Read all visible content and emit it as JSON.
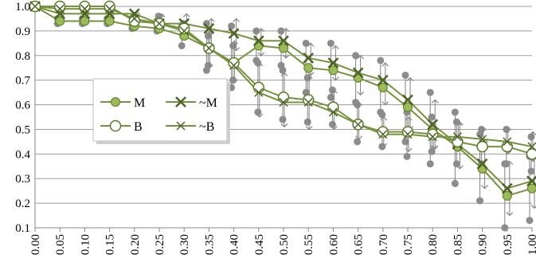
{
  "chart_data": {
    "type": "line",
    "title": "",
    "xlabel": "",
    "ylabel": "",
    "x": [
      0.0,
      0.05,
      0.1,
      0.15,
      0.2,
      0.25,
      0.3,
      0.35,
      0.4,
      0.45,
      0.5,
      0.55,
      0.6,
      0.65,
      0.7,
      0.75,
      0.8,
      0.85,
      0.9,
      0.95,
      1.0
    ],
    "x_tick_labels": [
      "0.00",
      "0.05",
      "0.10",
      "0.15",
      "0.20",
      "0.25",
      "0.30",
      "0.35",
      "0.40",
      "0.45",
      "0.50",
      "0.55",
      "0.60",
      "0.65",
      "0.70",
      "0.75",
      "0.80",
      "0.85",
      "0.90",
      "0.95",
      "1.00"
    ],
    "ylim": [
      0.1,
      1.0
    ],
    "y_ticks": [
      0.1,
      0.2,
      0.3,
      0.4,
      0.5,
      0.6,
      0.7,
      0.8,
      0.9,
      1.0
    ],
    "y_tick_labels": [
      "0.1",
      "0.2",
      "0.3",
      "0.4",
      "0.5",
      "0.6",
      "0.7",
      "0.8",
      "0.9",
      "1.0"
    ],
    "grid": "horizontal",
    "legend_position": "left-middle",
    "series": [
      {
        "name": "M",
        "marker": "filled-circle",
        "values": [
          1.0,
          0.94,
          0.94,
          0.94,
          0.92,
          0.91,
          0.88,
          0.83,
          0.77,
          0.84,
          0.83,
          0.75,
          0.74,
          0.71,
          0.67,
          0.59,
          0.5,
          0.43,
          0.34,
          0.23,
          0.26
        ],
        "low": [
          1.0,
          0.93,
          0.93,
          0.93,
          0.91,
          0.9,
          0.84,
          0.74,
          0.67,
          0.78,
          0.76,
          0.65,
          0.63,
          0.61,
          0.57,
          0.45,
          0.36,
          0.28,
          0.21,
          0.1,
          0.13
        ],
        "high": [
          1.0,
          0.95,
          0.95,
          0.95,
          0.94,
          0.93,
          0.92,
          0.93,
          0.92,
          0.9,
          0.9,
          0.85,
          0.85,
          0.8,
          0.78,
          0.72,
          0.65,
          0.57,
          0.48,
          0.36,
          0.39
        ]
      },
      {
        "name": "~M",
        "marker": "x",
        "values": [
          1.0,
          0.97,
          0.97,
          0.97,
          0.97,
          0.93,
          0.93,
          0.91,
          0.89,
          0.86,
          0.86,
          0.79,
          0.77,
          0.73,
          0.7,
          0.62,
          0.52,
          0.44,
          0.36,
          0.26,
          0.29
        ],
        "low": [
          1.0,
          0.96,
          0.96,
          0.96,
          0.95,
          0.92,
          0.88,
          0.83,
          0.82,
          0.8,
          0.79,
          0.72,
          0.7,
          0.64,
          0.6,
          0.5,
          0.42,
          0.34,
          0.26,
          0.15,
          0.18
        ],
        "high": [
          1.0,
          0.98,
          0.98,
          0.98,
          0.98,
          0.97,
          0.97,
          0.95,
          0.95,
          0.91,
          0.91,
          0.85,
          0.84,
          0.8,
          0.77,
          0.71,
          0.62,
          0.53,
          0.46,
          0.37,
          0.4
        ]
      },
      {
        "name": "B",
        "marker": "open-circle",
        "values": [
          1.0,
          1.0,
          1.0,
          1.0,
          0.94,
          0.93,
          0.91,
          0.83,
          0.77,
          0.67,
          0.63,
          0.62,
          0.59,
          0.52,
          0.49,
          0.49,
          0.48,
          0.45,
          0.43,
          0.43,
          0.4
        ],
        "low": [
          1.0,
          1.0,
          1.0,
          1.0,
          0.93,
          0.91,
          0.88,
          0.76,
          0.7,
          0.57,
          0.54,
          0.53,
          0.52,
          0.45,
          0.43,
          0.39,
          0.41,
          0.36,
          0.36,
          0.36,
          0.33
        ],
        "high": [
          1.0,
          1.0,
          1.0,
          1.0,
          0.95,
          0.96,
          0.93,
          0.88,
          0.84,
          0.77,
          0.74,
          0.71,
          0.66,
          0.6,
          0.56,
          0.57,
          0.55,
          0.53,
          0.5,
          0.5,
          0.47
        ]
      },
      {
        "name": "~B",
        "marker": "small-x",
        "values": [
          1.0,
          0.99,
          0.99,
          0.99,
          0.95,
          0.93,
          0.9,
          0.83,
          0.76,
          0.65,
          0.61,
          0.61,
          0.57,
          0.52,
          0.48,
          0.48,
          0.47,
          0.47,
          0.46,
          0.45,
          0.43
        ],
        "low": [
          1.0,
          0.99,
          0.99,
          0.99,
          0.94,
          0.92,
          0.87,
          0.75,
          0.69,
          0.55,
          0.51,
          0.5,
          0.5,
          0.46,
          0.43,
          0.41,
          0.42,
          0.41,
          0.41,
          0.4,
          0.37
        ],
        "high": [
          1.0,
          1.0,
          1.0,
          1.0,
          0.97,
          0.97,
          0.94,
          0.9,
          0.86,
          0.77,
          0.73,
          0.72,
          0.66,
          0.61,
          0.55,
          0.55,
          0.53,
          0.53,
          0.51,
          0.51,
          0.49
        ]
      }
    ],
    "colors": {
      "line": "#76923c",
      "marker_fill": "#9bbb59",
      "marker_stroke": "#5a7a28",
      "x_marker": "#4f6228",
      "error_whisker": "#7f7f7f",
      "error_end": "#8c8c8c",
      "grid": "#9e9e9e",
      "axis": "#868686"
    }
  }
}
